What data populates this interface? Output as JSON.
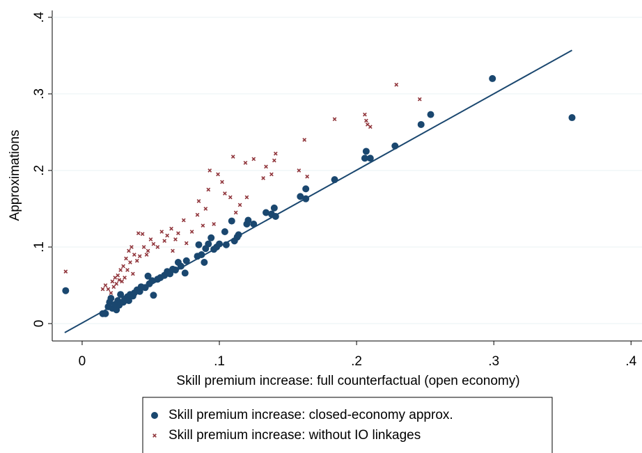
{
  "chart_data": {
    "type": "scatter",
    "xlabel": "Skill premium increase: full counterfactual (open economy)",
    "ylabel": "Approximations",
    "xlim": [
      -0.0218,
      0.408
    ],
    "ylim": [
      -0.0227,
      0.409
    ],
    "xticks": [
      0,
      {
        "value": 0.1,
        "label": ".1"
      },
      {
        "value": 0.2,
        "label": ".2"
      },
      {
        "value": 0.3,
        "label": ".3"
      },
      {
        "value": 0.4,
        "label": ".4"
      }
    ],
    "yticks": [
      0,
      {
        "value": 0.1,
        "label": ".1"
      },
      {
        "value": 0.2,
        "label": ".2"
      },
      {
        "value": 0.3,
        "label": ".3"
      },
      {
        "value": 0.4,
        "label": ".4"
      }
    ],
    "grid": true,
    "fit_line": {
      "color": "#1a476f",
      "x": [
        -0.0127,
        0.357
      ],
      "y": [
        -0.0118,
        0.357
      ]
    },
    "series": [
      {
        "name": "Skill premium increase: closed-economy approx.",
        "color": "#1a476f",
        "marker": "circle",
        "x": [
          -0.012,
          0.015,
          0.017,
          0.019,
          0.02,
          0.021,
          0.022,
          0.024,
          0.025,
          0.026,
          0.027,
          0.028,
          0.03,
          0.031,
          0.033,
          0.034,
          0.035,
          0.037,
          0.038,
          0.04,
          0.042,
          0.043,
          0.046,
          0.048,
          0.049,
          0.051,
          0.052,
          0.055,
          0.057,
          0.06,
          0.062,
          0.064,
          0.066,
          0.068,
          0.07,
          0.072,
          0.075,
          0.076,
          0.084,
          0.085,
          0.087,
          0.089,
          0.09,
          0.092,
          0.094,
          0.096,
          0.098,
          0.1,
          0.104,
          0.105,
          0.109,
          0.111,
          0.113,
          0.114,
          0.12,
          0.121,
          0.125,
          0.134,
          0.138,
          0.14,
          0.141,
          0.159,
          0.163,
          0.163,
          0.184,
          0.206,
          0.207,
          0.21,
          0.228,
          0.247,
          0.254,
          0.299,
          0.357
        ],
        "values": [
          0.043,
          0.013,
          0.013,
          0.022,
          0.028,
          0.033,
          0.02,
          0.025,
          0.018,
          0.03,
          0.024,
          0.038,
          0.028,
          0.032,
          0.035,
          0.03,
          0.038,
          0.036,
          0.04,
          0.044,
          0.042,
          0.048,
          0.047,
          0.062,
          0.052,
          0.056,
          0.037,
          0.058,
          0.06,
          0.063,
          0.068,
          0.065,
          0.071,
          0.07,
          0.08,
          0.075,
          0.066,
          0.082,
          0.088,
          0.103,
          0.09,
          0.08,
          0.098,
          0.104,
          0.112,
          0.097,
          0.1,
          0.104,
          0.12,
          0.103,
          0.134,
          0.108,
          0.113,
          0.116,
          0.13,
          0.135,
          0.13,
          0.145,
          0.143,
          0.151,
          0.14,
          0.166,
          0.163,
          0.176,
          0.188,
          0.216,
          0.225,
          0.216,
          0.232,
          0.26,
          0.273,
          0.32,
          0.269
        ]
      },
      {
        "name": "Skill premium increase: without IO linkages",
        "color": "#90353b",
        "marker": "x",
        "x": [
          -0.012,
          0.015,
          0.017,
          0.019,
          0.021,
          0.022,
          0.023,
          0.024,
          0.025,
          0.026,
          0.027,
          0.028,
          0.029,
          0.03,
          0.031,
          0.032,
          0.033,
          0.034,
          0.035,
          0.036,
          0.037,
          0.038,
          0.04,
          0.041,
          0.042,
          0.044,
          0.045,
          0.047,
          0.048,
          0.05,
          0.052,
          0.055,
          0.058,
          0.06,
          0.062,
          0.065,
          0.066,
          0.068,
          0.07,
          0.074,
          0.076,
          0.08,
          0.084,
          0.085,
          0.088,
          0.09,
          0.092,
          0.093,
          0.096,
          0.099,
          0.102,
          0.104,
          0.108,
          0.11,
          0.112,
          0.115,
          0.119,
          0.12,
          0.125,
          0.132,
          0.134,
          0.138,
          0.14,
          0.141,
          0.158,
          0.162,
          0.164,
          0.184,
          0.206,
          0.207,
          0.208,
          0.21,
          0.229,
          0.246
        ],
        "values": [
          0.068,
          0.045,
          0.05,
          0.045,
          0.04,
          0.055,
          0.048,
          0.06,
          0.052,
          0.063,
          0.057,
          0.07,
          0.055,
          0.075,
          0.06,
          0.085,
          0.07,
          0.095,
          0.08,
          0.1,
          0.065,
          0.09,
          0.082,
          0.118,
          0.088,
          0.117,
          0.1,
          0.09,
          0.095,
          0.11,
          0.104,
          0.1,
          0.12,
          0.108,
          0.115,
          0.124,
          0.095,
          0.11,
          0.118,
          0.135,
          0.105,
          0.12,
          0.142,
          0.16,
          0.128,
          0.15,
          0.175,
          0.2,
          0.13,
          0.195,
          0.185,
          0.17,
          0.165,
          0.218,
          0.145,
          0.155,
          0.21,
          0.165,
          0.215,
          0.19,
          0.205,
          0.195,
          0.213,
          0.222,
          0.2,
          0.24,
          0.192,
          0.267,
          0.273,
          0.265,
          0.26,
          0.257,
          0.312,
          0.293
        ]
      }
    ]
  }
}
